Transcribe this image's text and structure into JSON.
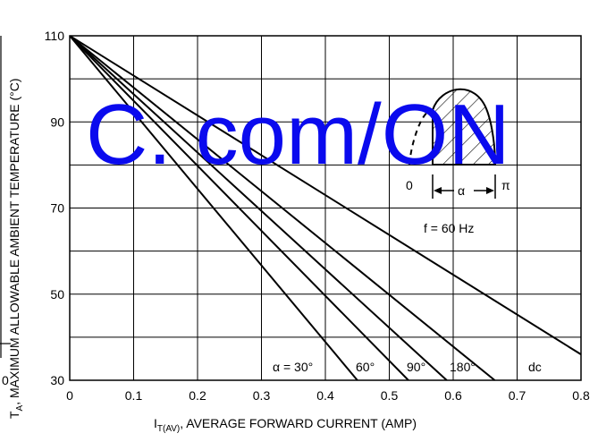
{
  "chart_data": {
    "type": "line",
    "xlabel_main": "I",
    "xlabel_sub": "T(AV)",
    "xlabel_rest": ", AVERAGE FORWARD CURRENT (AMP)",
    "ylabel_main": "T",
    "ylabel_sub": "A",
    "ylabel_rest": ", MAXIMUM ALLOWABLE AMBIENT TEMPERATURE (°C)",
    "xlim": [
      0,
      0.8
    ],
    "ylim": [
      30,
      110
    ],
    "x_ticks": [
      "0",
      "0.1",
      "0.2",
      "0.3",
      "0.4",
      "0.5",
      "0.6",
      "0.7",
      "0.8"
    ],
    "x_tick_values": [
      0,
      0.1,
      0.2,
      0.3,
      0.4,
      0.5,
      0.6,
      0.7,
      0.8
    ],
    "y_ticks": [
      "30",
      "50",
      "70",
      "90",
      "110"
    ],
    "y_tick_values": [
      30,
      50,
      70,
      90,
      110
    ],
    "grid": true,
    "series": [
      {
        "name": "α = 30°",
        "x": [
          0,
          0.45
        ],
        "y": [
          110,
          30
        ]
      },
      {
        "name": "60°",
        "x": [
          0,
          0.53
        ],
        "y": [
          110,
          30
        ]
      },
      {
        "name": "90°",
        "x": [
          0,
          0.59
        ],
        "y": [
          110,
          30
        ]
      },
      {
        "name": "180°",
        "x": [
          0,
          0.665
        ],
        "y": [
          110,
          30
        ]
      },
      {
        "name": "dc",
        "x": [
          0,
          0.8
        ],
        "y": [
          110,
          36
        ]
      }
    ],
    "curve_labels": [
      "α = 30°",
      "60°",
      "90°",
      "180°",
      "dc"
    ],
    "inset": {
      "left_label": "0",
      "right_label": "π",
      "angle_label": "α",
      "freq_label": "f = 60 Hz"
    },
    "stray_left_label": "0"
  },
  "watermark": {
    "text": "C. com/ON",
    "color": "#0a0aee"
  }
}
